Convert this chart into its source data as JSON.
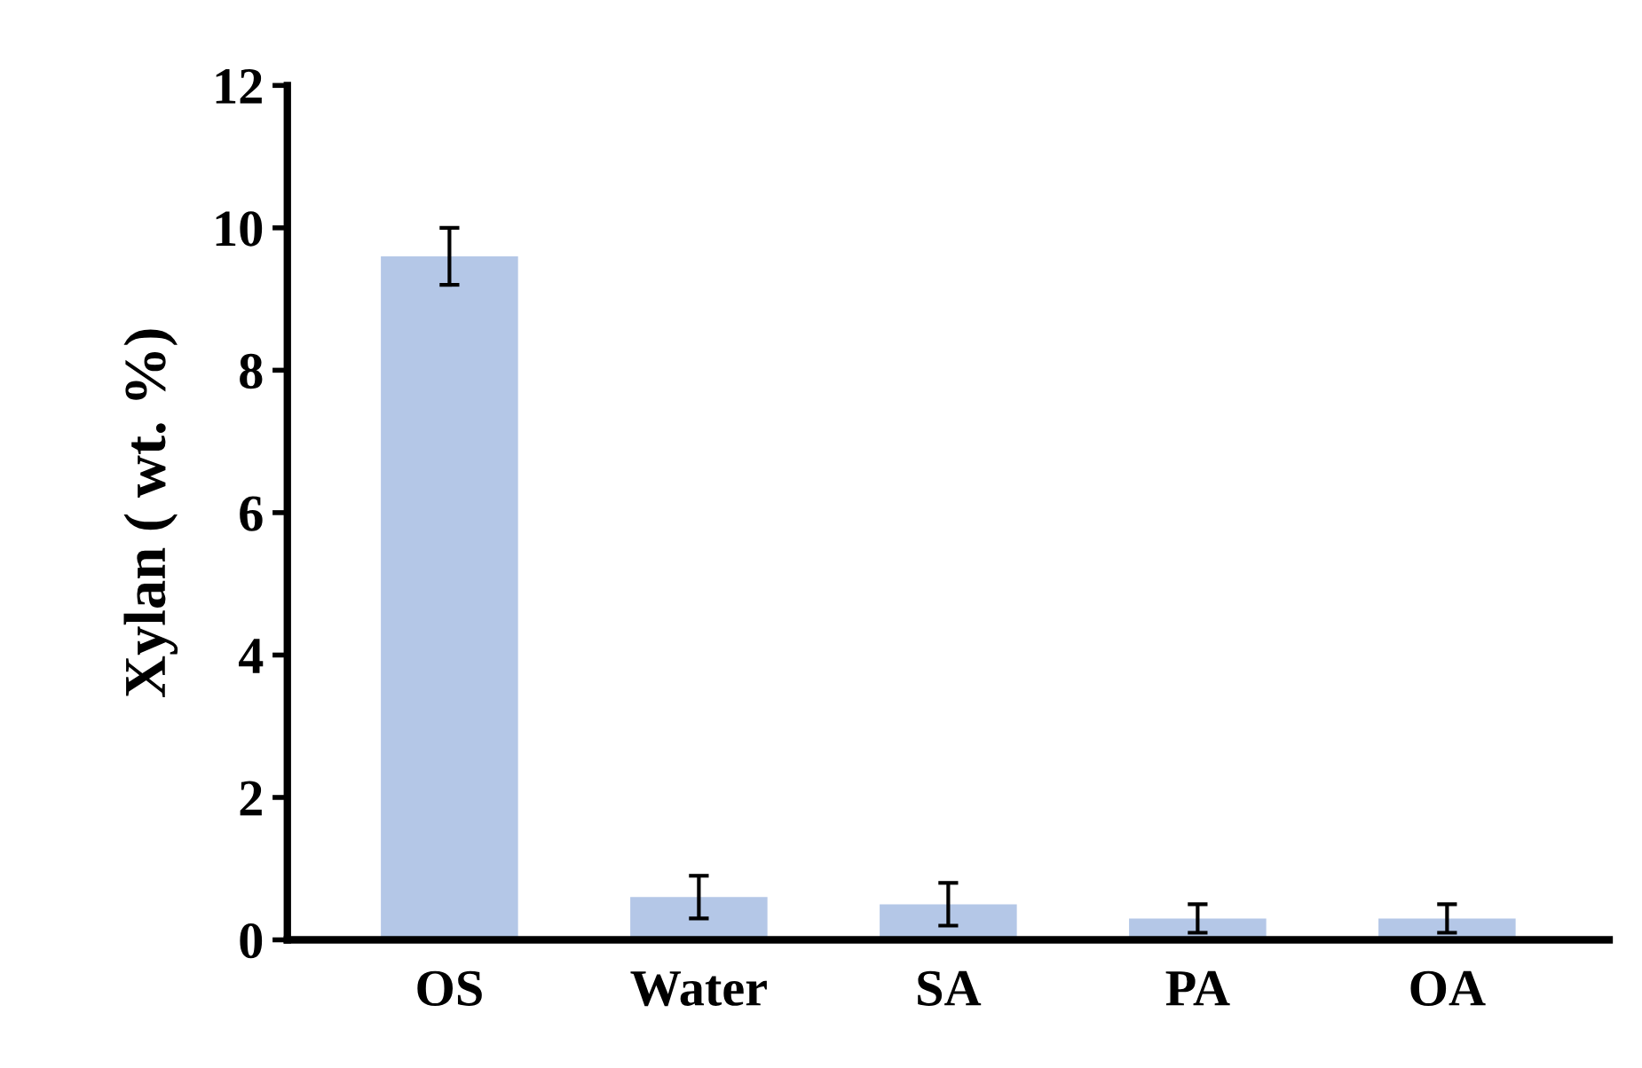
{
  "chart_data": {
    "type": "bar",
    "ylabel": "Xylan ( wt. %)",
    "categories": [
      "OS",
      "Water",
      "SA",
      "PA",
      "OA"
    ],
    "values": [
      9.6,
      0.6,
      0.5,
      0.3,
      0.3
    ],
    "errors": [
      0.4,
      0.3,
      0.3,
      0.2,
      0.2
    ],
    "color": "#b4c7e7",
    "ylim": [
      0,
      12
    ],
    "yticks": [
      0,
      2,
      4,
      6,
      8,
      10,
      12
    ],
    "grid": false
  }
}
